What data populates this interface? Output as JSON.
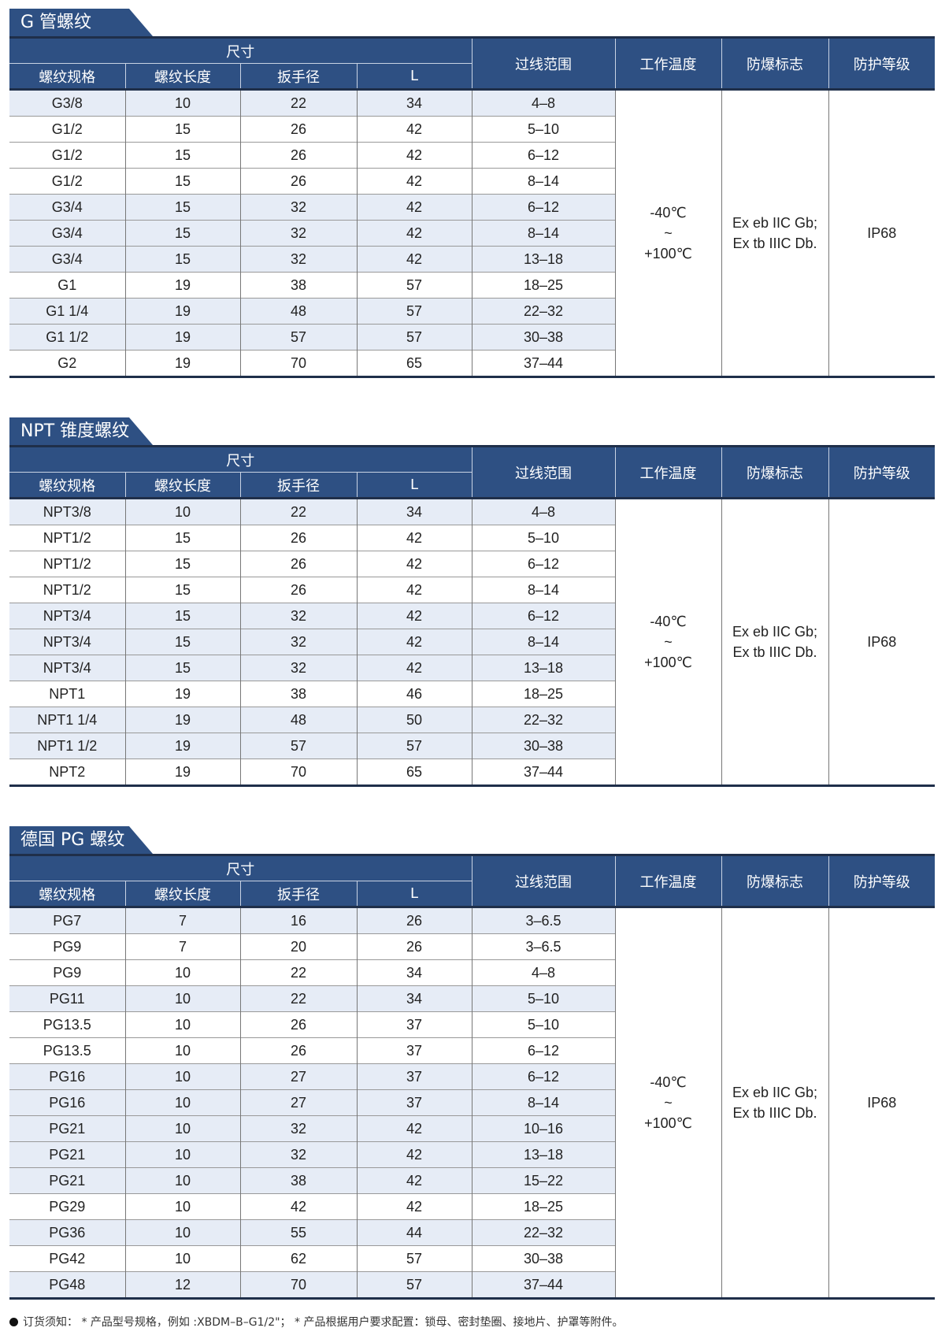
{
  "colors": {
    "header": "#2e5083",
    "shaded_row": "#e6ecf6"
  },
  "headers": {
    "size_group": "尺寸",
    "spec": "螺纹规格",
    "thread_length": "螺纹长度",
    "wrench": "扳手径",
    "L": "L",
    "cable_range": "过线范围",
    "temp": "工作温度",
    "ex_mark": "防爆标志",
    "ip": "防护等级"
  },
  "sections": [
    {
      "title": "G 管螺纹",
      "temp": [
        "-40℃",
        "~",
        "+100℃"
      ],
      "ex": [
        "Ex eb IIC Gb;",
        "Ex tb IIIC Db."
      ],
      "ip": "IP68",
      "rows": [
        {
          "spec": "G3/8",
          "len": "10",
          "wrench": "22",
          "L": "34",
          "range": "4–8",
          "shaded": true
        },
        {
          "spec": "G1/2",
          "len": "15",
          "wrench": "26",
          "L": "42",
          "range": "5–10",
          "shaded": false
        },
        {
          "spec": "G1/2",
          "len": "15",
          "wrench": "26",
          "L": "42",
          "range": "6–12",
          "shaded": false
        },
        {
          "spec": "G1/2",
          "len": "15",
          "wrench": "26",
          "L": "42",
          "range": "8–14",
          "shaded": false
        },
        {
          "spec": "G3/4",
          "len": "15",
          "wrench": "32",
          "L": "42",
          "range": "6–12",
          "shaded": true
        },
        {
          "spec": "G3/4",
          "len": "15",
          "wrench": "32",
          "L": "42",
          "range": "8–14",
          "shaded": true
        },
        {
          "spec": "G3/4",
          "len": "15",
          "wrench": "32",
          "L": "42",
          "range": "13–18",
          "shaded": true
        },
        {
          "spec": "G1",
          "len": "19",
          "wrench": "38",
          "L": "57",
          "range": "18–25",
          "shaded": false
        },
        {
          "spec": "G1 1/4",
          "len": "19",
          "wrench": "48",
          "L": "57",
          "range": "22–32",
          "shaded": true
        },
        {
          "spec": "G1 1/2",
          "len": "19",
          "wrench": "57",
          "L": "57",
          "range": "30–38",
          "shaded": true
        },
        {
          "spec": "G2",
          "len": "19",
          "wrench": "70",
          "L": "65",
          "range": "37–44",
          "shaded": false
        }
      ]
    },
    {
      "title": "NPT 锥度螺纹",
      "temp": [
        "-40℃",
        "~",
        "+100℃"
      ],
      "ex": [
        "Ex eb IIC Gb;",
        "Ex tb IIIC Db."
      ],
      "ip": "IP68",
      "rows": [
        {
          "spec": "NPT3/8",
          "len": "10",
          "wrench": "22",
          "L": "34",
          "range": "4–8",
          "shaded": true
        },
        {
          "spec": "NPT1/2",
          "len": "15",
          "wrench": "26",
          "L": "42",
          "range": "5–10",
          "shaded": false
        },
        {
          "spec": "NPT1/2",
          "len": "15",
          "wrench": "26",
          "L": "42",
          "range": "6–12",
          "shaded": false
        },
        {
          "spec": "NPT1/2",
          "len": "15",
          "wrench": "26",
          "L": "42",
          "range": "8–14",
          "shaded": false
        },
        {
          "spec": "NPT3/4",
          "len": "15",
          "wrench": "32",
          "L": "42",
          "range": "6–12",
          "shaded": true
        },
        {
          "spec": "NPT3/4",
          "len": "15",
          "wrench": "32",
          "L": "42",
          "range": "8–14",
          "shaded": true
        },
        {
          "spec": "NPT3/4",
          "len": "15",
          "wrench": "32",
          "L": "42",
          "range": "13–18",
          "shaded": true
        },
        {
          "spec": "NPT1",
          "len": "19",
          "wrench": "38",
          "L": "46",
          "range": "18–25",
          "shaded": false
        },
        {
          "spec": "NPT1 1/4",
          "len": "19",
          "wrench": "48",
          "L": "50",
          "range": "22–32",
          "shaded": true
        },
        {
          "spec": "NPT1 1/2",
          "len": "19",
          "wrench": "57",
          "L": "57",
          "range": "30–38",
          "shaded": true
        },
        {
          "spec": "NPT2",
          "len": "19",
          "wrench": "70",
          "L": "65",
          "range": "37–44",
          "shaded": false
        }
      ]
    },
    {
      "title": "德国 PG 螺纹",
      "temp": [
        "-40℃",
        "~",
        "+100℃"
      ],
      "ex": [
        "Ex eb IIC Gb;",
        "Ex tb IIIC Db."
      ],
      "ip": "IP68",
      "rows": [
        {
          "spec": "PG7",
          "len": "7",
          "wrench": "16",
          "L": "26",
          "range": "3–6.5",
          "shaded": true
        },
        {
          "spec": "PG9",
          "len": "7",
          "wrench": "20",
          "L": "26",
          "range": "3–6.5",
          "shaded": false
        },
        {
          "spec": "PG9",
          "len": "10",
          "wrench": "22",
          "L": "34",
          "range": "4–8",
          "shaded": false
        },
        {
          "spec": "PG11",
          "len": "10",
          "wrench": "22",
          "L": "34",
          "range": "5–10",
          "shaded": true
        },
        {
          "spec": "PG13.5",
          "len": "10",
          "wrench": "26",
          "L": "37",
          "range": "5–10",
          "shaded": false
        },
        {
          "spec": "PG13.5",
          "len": "10",
          "wrench": "26",
          "L": "37",
          "range": "6–12",
          "shaded": false
        },
        {
          "spec": "PG16",
          "len": "10",
          "wrench": "27",
          "L": "37",
          "range": "6–12",
          "shaded": true
        },
        {
          "spec": "PG16",
          "len": "10",
          "wrench": "27",
          "L": "37",
          "range": "8–14",
          "shaded": true
        },
        {
          "spec": "PG21",
          "len": "10",
          "wrench": "32",
          "L": "42",
          "range": "10–16",
          "shaded": true
        },
        {
          "spec": "PG21",
          "len": "10",
          "wrench": "32",
          "L": "42",
          "range": "13–18",
          "shaded": true
        },
        {
          "spec": "PG21",
          "len": "10",
          "wrench": "38",
          "L": "42",
          "range": "15–22",
          "shaded": true
        },
        {
          "spec": "PG29",
          "len": "10",
          "wrench": "42",
          "L": "42",
          "range": "18–25",
          "shaded": false
        },
        {
          "spec": "PG36",
          "len": "10",
          "wrench": "55",
          "L": "44",
          "range": "22–32",
          "shaded": true
        },
        {
          "spec": "PG42",
          "len": "10",
          "wrench": "62",
          "L": "57",
          "range": "30–38",
          "shaded": false
        },
        {
          "spec": "PG48",
          "len": "12",
          "wrench": "70",
          "L": "57",
          "range": "37–44",
          "shaded": true
        }
      ]
    }
  ],
  "footer": {
    "bullet_icon": "filled-circle",
    "text": "订货须知： * 产品型号规格，例如 :XBDM–B–G1/2\"； * 产品根据用户要求配置：锁母、密封垫圈、接地片、护罩等附件。"
  }
}
